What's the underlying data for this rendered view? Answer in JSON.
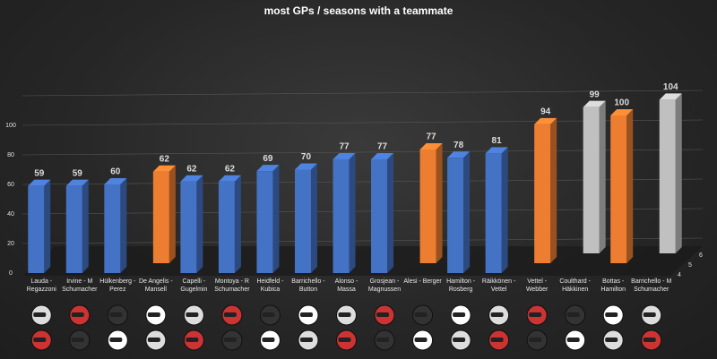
{
  "chart_data": {
    "type": "bar3d",
    "title": "most GPs / seasons with a teammate",
    "categories": [
      "Lauda - Regazzoni",
      "Irvine - M Schumacher",
      "Hülkenberg - Perez",
      "De Angelis - Mansell",
      "Capelli - Gugelmin",
      "Montoya - R Schumacher",
      "Heidfeld - Kubica",
      "Barrichello - Button",
      "Alonso - Massa",
      "Grosjean - Magnussen",
      "Alesi - Berger",
      "Hamilton - Rosberg",
      "Räikkönen - Vettel",
      "Vettel - Webber",
      "Coulthard - Häkkinen",
      "Bottas - Hamilton",
      "Barrichello - M Schumacher"
    ],
    "series": [
      {
        "name": "4",
        "color": "#4472c4",
        "values": [
          59,
          59,
          60,
          null,
          62,
          62,
          69,
          70,
          77,
          77,
          null,
          78,
          81,
          null,
          null,
          null,
          null
        ]
      },
      {
        "name": "5",
        "color": "#ed7d31",
        "values": [
          null,
          null,
          null,
          62,
          null,
          null,
          null,
          null,
          null,
          null,
          77,
          null,
          null,
          94,
          null,
          100,
          null
        ]
      },
      {
        "name": "6",
        "color": "#c0c0c0",
        "values": [
          null,
          null,
          null,
          null,
          null,
          null,
          null,
          null,
          null,
          null,
          null,
          null,
          null,
          null,
          99,
          null,
          104
        ]
      }
    ],
    "ylim": [
      0,
      120
    ],
    "yticks": [
      0,
      20,
      40,
      60,
      80,
      100
    ],
    "grid": true
  }
}
